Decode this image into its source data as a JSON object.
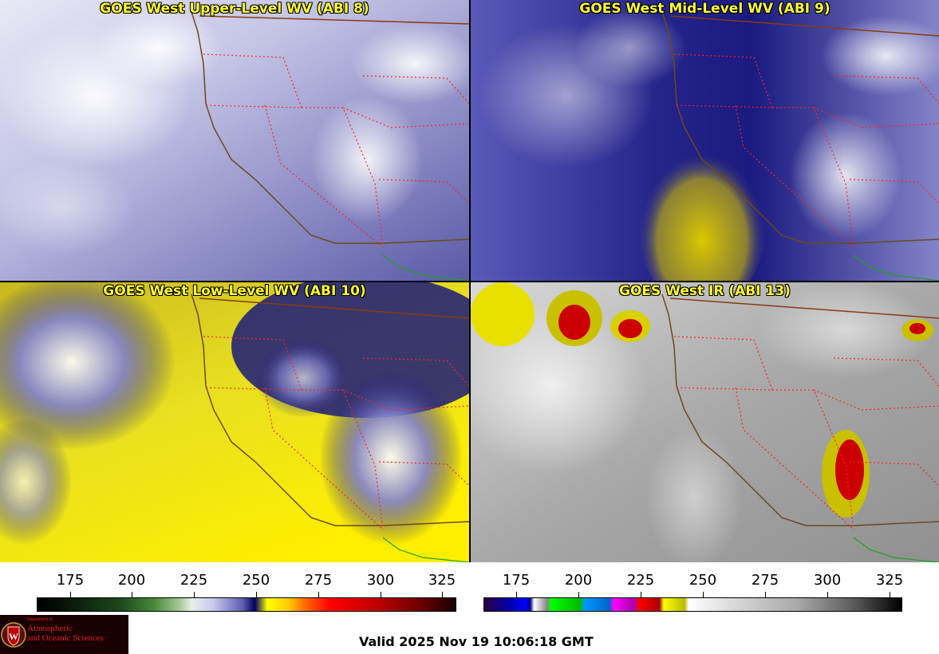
{
  "panels": [
    {
      "title": "GOES West Upper-Level WV (ABI 8)",
      "palette": "wv-upper"
    },
    {
      "title": "GOES West Mid-Level WV (ABI 9)",
      "palette": "wv-mid"
    },
    {
      "title": "GOES West Low-Level WV (ABI 10)",
      "palette": "wv-low"
    },
    {
      "title": "GOES West IR (ABI 13)",
      "palette": "ir"
    }
  ],
  "colorbars": {
    "wv": {
      "ticks": [
        "175",
        "200",
        "225",
        "250",
        "275",
        "300",
        "325"
      ]
    },
    "ir": {
      "ticks": [
        "175",
        "200",
        "225",
        "250",
        "275",
        "300",
        "325"
      ]
    }
  },
  "logo": {
    "small_text": "Department of",
    "line1": "Atmospheric",
    "line2": "and Oceanic Sciences",
    "icon": "university-crest-icon"
  },
  "valid_time": "Valid 2025 Nov 19 10:06:18 GMT",
  "colors": {
    "title_text": "#ffff33",
    "state_borders": "#ff2020",
    "coastline": "#6b4a1a",
    "mexico_border": "#20a020"
  }
}
